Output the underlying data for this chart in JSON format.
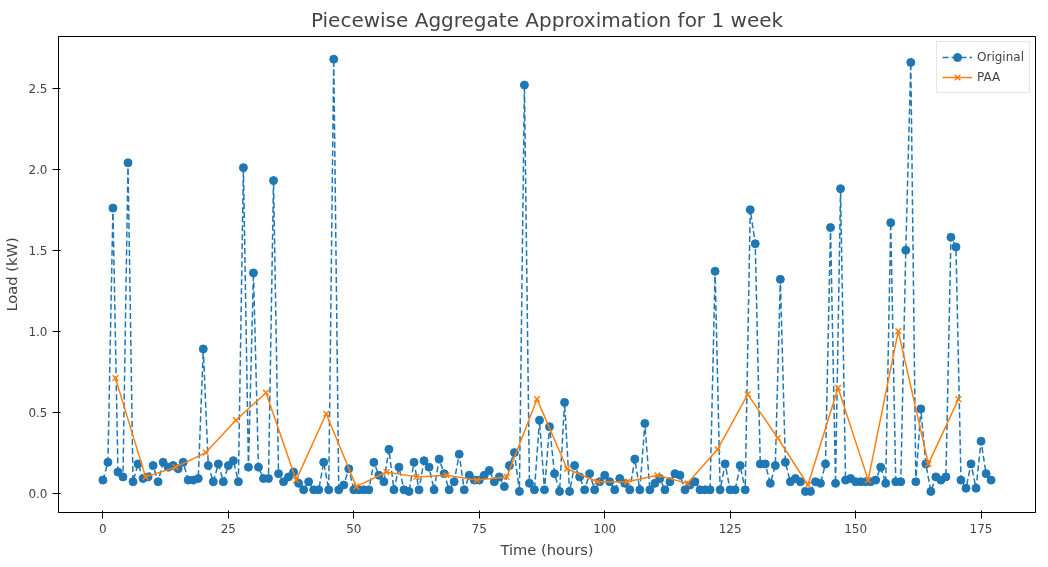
{
  "chart_data": {
    "type": "line",
    "title": "Piecewise Aggregate Approximation for 1 week",
    "xlabel": "Time (hours)",
    "ylabel": "Load (kW)",
    "xlim": [
      -8.85,
      185.85
    ],
    "xticks": [
      0,
      25,
      50,
      75,
      100,
      125,
      150,
      175
    ],
    "ylim": [
      -0.12,
      2.82
    ],
    "yticks": [
      {
        "value": 0,
        "label": "0.0"
      },
      {
        "value": 0.5,
        "label": "0.5"
      },
      {
        "value": 1,
        "label": "1.0"
      },
      {
        "value": 1.5,
        "label": "1.5"
      },
      {
        "value": 2,
        "label": "2.0"
      },
      {
        "value": 2.5,
        "label": "2.5"
      }
    ],
    "grid": false,
    "legend": "top right",
    "series": [
      {
        "name": "Original",
        "color": "#1f77b4",
        "marker": "circle",
        "line_style": "dashed",
        "x": [
          0,
          1,
          2,
          3,
          4,
          5,
          6,
          7,
          8,
          9,
          10,
          11,
          12,
          13,
          14,
          15,
          16,
          17,
          18,
          19,
          20,
          21,
          22,
          23,
          24,
          25,
          26,
          27,
          28,
          29,
          30,
          31,
          32,
          33,
          34,
          35,
          36,
          37,
          38,
          39,
          40,
          41,
          42,
          43,
          44,
          45,
          46,
          47,
          48,
          49,
          50,
          51,
          52,
          53,
          54,
          55,
          56,
          57,
          58,
          59,
          60,
          61,
          62,
          63,
          64,
          65,
          66,
          67,
          68,
          69,
          70,
          71,
          72,
          73,
          74,
          75,
          76,
          77,
          78,
          79,
          80,
          81,
          82,
          83,
          84,
          85,
          86,
          87,
          88,
          89,
          90,
          91,
          92,
          93,
          94,
          95,
          96,
          97,
          98,
          99,
          100,
          101,
          102,
          103,
          104,
          105,
          106,
          107,
          108,
          109,
          110,
          111,
          112,
          113,
          114,
          115,
          116,
          117,
          118,
          119,
          120,
          121,
          122,
          123,
          124,
          125,
          126,
          127,
          128,
          129,
          130,
          131,
          132,
          133,
          134,
          135,
          136,
          137,
          138,
          139,
          140,
          141,
          142,
          143,
          144,
          145,
          146,
          147,
          148,
          149,
          150,
          151,
          152,
          153,
          154,
          155,
          156,
          157,
          158,
          159,
          160,
          161,
          162,
          163,
          164,
          165,
          166,
          167,
          168,
          169,
          170,
          171,
          172,
          173,
          174,
          175,
          176,
          177
        ],
        "values": [
          0.08,
          0.19,
          1.76,
          0.13,
          0.1,
          2.04,
          0.07,
          0.18,
          0.09,
          0.1,
          0.17,
          0.07,
          0.19,
          0.16,
          0.17,
          0.15,
          0.19,
          0.08,
          0.08,
          0.09,
          0.89,
          0.17,
          0.07,
          0.18,
          0.07,
          0.17,
          0.2,
          0.07,
          2.01,
          0.16,
          1.36,
          0.16,
          0.09,
          0.09,
          1.93,
          0.12,
          0.07,
          0.1,
          0.13,
          0.06,
          0.02,
          0.07,
          0.02,
          0.02,
          0.19,
          0.02,
          2.68,
          0.02,
          0.05,
          0.15,
          0.02,
          0.02,
          0.02,
          0.02,
          0.19,
          0.11,
          0.07,
          0.27,
          0.02,
          0.16,
          0.02,
          0.01,
          0.19,
          0.02,
          0.2,
          0.16,
          0.02,
          0.21,
          0.12,
          0.02,
          0.07,
          0.24,
          0.02,
          0.11,
          0.08,
          0.08,
          0.11,
          0.14,
          0.07,
          0.1,
          0.04,
          0.17,
          0.25,
          0.01,
          2.52,
          0.06,
          0.02,
          0.45,
          0.02,
          0.41,
          0.12,
          0.01,
          0.56,
          0.01,
          0.17,
          0.1,
          0.02,
          0.12,
          0.02,
          0.07,
          0.11,
          0.07,
          0.02,
          0.09,
          0.06,
          0.02,
          0.21,
          0.02,
          0.43,
          0.02,
          0.06,
          0.09,
          0.02,
          0.07,
          0.12,
          0.11,
          0.02,
          0.05,
          0.07,
          0.02,
          0.02,
          0.02,
          1.37,
          0.02,
          0.18,
          0.02,
          0.02,
          0.17,
          0.02,
          1.75,
          1.54,
          0.18,
          0.18,
          0.06,
          0.17,
          1.32,
          0.19,
          0.07,
          0.09,
          0.07,
          0.01,
          0.01,
          0.07,
          0.06,
          0.18,
          1.64,
          0.06,
          1.88,
          0.08,
          0.09,
          0.07,
          0.07,
          0.07,
          0.07,
          0.08,
          0.16,
          0.06,
          1.67,
          0.07,
          0.07,
          1.5,
          2.66,
          0.07,
          0.52,
          0.18,
          0.01,
          0.1,
          0.08,
          0.1,
          1.58,
          1.52,
          0.08,
          0.03,
          0.18,
          0.03,
          0.32,
          0.12,
          0.08
        ]
      },
      {
        "name": "PAA",
        "color": "#ff7f0e",
        "marker": "cross",
        "line_style": "solid",
        "x": [
          2.5,
          8.5,
          14.5,
          20.5,
          26.5,
          32.5,
          38.5,
          44.5,
          50.5,
          56.5,
          62.5,
          68.5,
          74.5,
          80.5,
          86.5,
          92.5,
          98.5,
          104.5,
          110.5,
          116.5,
          122.5,
          128.5,
          134.5,
          140.5,
          146.5,
          152.5,
          158.5,
          164.5,
          170.5
        ],
        "values": [
          0.71,
          0.1,
          0.16,
          0.25,
          0.45,
          0.62,
          0.08,
          0.49,
          0.04,
          0.13,
          0.1,
          0.11,
          0.08,
          0.1,
          0.58,
          0.15,
          0.07,
          0.07,
          0.11,
          0.06,
          0.27,
          0.61,
          0.34,
          0.05,
          0.65,
          0.08,
          1.0,
          0.18,
          0.58
        ]
      }
    ]
  }
}
